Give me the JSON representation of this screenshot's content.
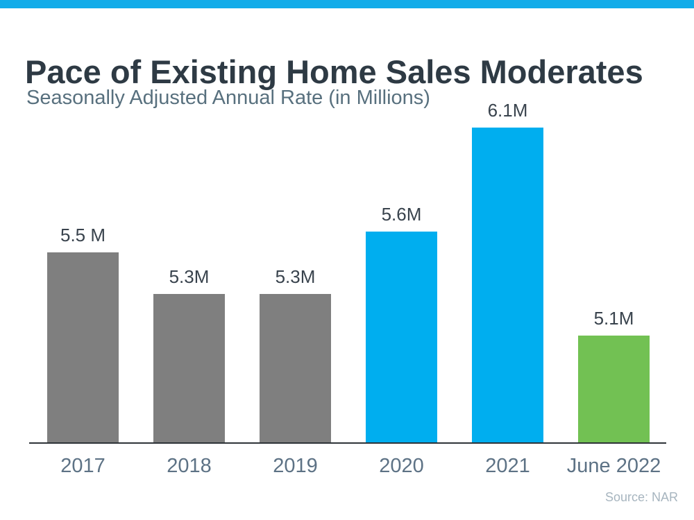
{
  "page": {
    "accent_bar_color": "#12ace9"
  },
  "chart_data": {
    "type": "bar",
    "title": "Pace of Existing Home Sales Moderates",
    "subtitle": "Seasonally Adjusted Annual Rate (in Millions)",
    "categories": [
      "2017",
      "2018",
      "2019",
      "2020",
      "2021",
      "June 2022"
    ],
    "values": [
      5.5,
      5.3,
      5.3,
      5.6,
      6.1,
      5.1
    ],
    "value_labels": [
      "5.5 M",
      "5.3M",
      "5.3M",
      "5.6M",
      "6.1M",
      "5.1M"
    ],
    "bar_colors": [
      "#7f7f7f",
      "#7f7f7f",
      "#7f7f7f",
      "#00aeef",
      "#00aeef",
      "#72c153"
    ],
    "ylabel": "",
    "xlabel": "",
    "ylim": [
      4.58,
      6.19
    ],
    "grid": false,
    "legend": false,
    "axis_color": "#2e3338",
    "source": "Source: NAR"
  }
}
